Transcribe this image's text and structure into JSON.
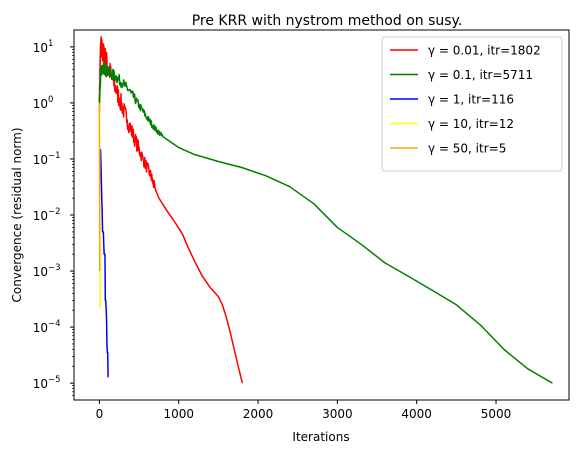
{
  "chart_data": {
    "type": "line",
    "title": "Pre KRR with nystrom method on susy.",
    "xlabel": "Iterations",
    "ylabel": "Convergence (residual norm)",
    "xlim": [
      -320,
      5920
    ],
    "ylim": [
      5e-06,
      20
    ],
    "yscale": "log",
    "grid": false,
    "legend_position": "top-right",
    "xticks": [
      0,
      1000,
      2000,
      3000,
      4000,
      5000
    ],
    "xtick_labels": [
      "0",
      "1000",
      "2000",
      "3000",
      "4000",
      "5000"
    ],
    "yticks": [
      1e-05,
      0.0001,
      0.001,
      0.01,
      0.1,
      1,
      10
    ],
    "ytick_labels": [
      "10",
      "10",
      "10",
      "10",
      "10",
      "10",
      "10"
    ],
    "ytick_exponents": [
      "−5",
      "−4",
      "−3",
      "−2",
      "−1",
      "0",
      "1"
    ],
    "series": [
      {
        "name": "γ = 0.01, itr=1802",
        "color": "#ff0000",
        "noise": 0.22,
        "noise_until": 700,
        "x": [
          0,
          15,
          40,
          80,
          150,
          250,
          350,
          450,
          550,
          650,
          700,
          750,
          850,
          950,
          1050,
          1100,
          1200,
          1300,
          1400,
          1500,
          1550,
          1600,
          1650,
          1700,
          1750,
          1802
        ],
        "y": [
          1.0,
          10.5,
          8.0,
          6.0,
          3.0,
          1.2,
          0.5,
          0.22,
          0.1,
          0.05,
          0.03,
          0.02,
          0.012,
          0.0075,
          0.0045,
          0.003,
          0.0015,
          0.0008,
          0.0005,
          0.00035,
          0.00025,
          0.00015,
          8e-05,
          4e-05,
          2e-05,
          1e-05
        ]
      },
      {
        "name": "γ = 0.1, itr=5711",
        "color": "#008000",
        "noise": 0.12,
        "noise_until": 750,
        "x": [
          0,
          20,
          60,
          100,
          200,
          300,
          400,
          500,
          600,
          700,
          800,
          1000,
          1200,
          1500,
          1800,
          2100,
          2400,
          2700,
          3000,
          3300,
          3600,
          3900,
          4200,
          4500,
          4800,
          5100,
          5400,
          5711
        ],
        "y": [
          1.0,
          4.0,
          4.2,
          3.6,
          3.0,
          2.2,
          1.5,
          0.9,
          0.55,
          0.35,
          0.25,
          0.16,
          0.12,
          0.09,
          0.07,
          0.05,
          0.032,
          0.016,
          0.006,
          0.003,
          0.0014,
          0.0008,
          0.00045,
          0.00025,
          0.00011,
          4e-05,
          1.8e-05,
          1e-05
        ]
      },
      {
        "name": "γ = 1, itr=116",
        "color": "#0000ff",
        "noise": 0,
        "noise_until": 0,
        "x": [
          15,
          20,
          25,
          30,
          35,
          40,
          50,
          55,
          60,
          70,
          75,
          80,
          90,
          95,
          100,
          105,
          110,
          116
        ],
        "y": [
          0.15,
          0.08,
          0.04,
          0.02,
          0.012,
          0.005,
          0.005,
          0.003,
          0.002,
          0.002,
          0.0003,
          0.0003,
          0.00015,
          5e-05,
          3.5e-05,
          3.5e-05,
          1.3e-05,
          1.3e-05
        ]
      },
      {
        "name": "γ = 10, itr=12",
        "color": "#ffff00",
        "noise": 0,
        "noise_until": 0,
        "x": [
          0,
          2,
          4,
          6,
          8,
          10,
          12
        ],
        "y": [
          1.0,
          0.3,
          0.05,
          0.01,
          0.002,
          0.0005,
          0.00022
        ]
      },
      {
        "name": "γ = 50, itr=5",
        "color": "#ffa500",
        "noise": 0,
        "noise_until": 0,
        "x": [
          0,
          1,
          2,
          3,
          4,
          5
        ],
        "y": [
          1.0,
          0.2,
          0.03,
          0.008,
          0.002,
          0.001
        ]
      }
    ]
  }
}
